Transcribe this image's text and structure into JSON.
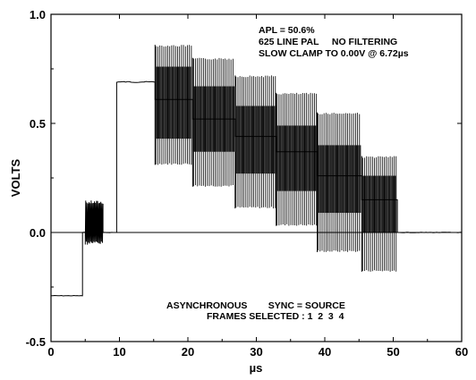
{
  "chart_data": {
    "type": "line",
    "title": "",
    "xlabel": "µs",
    "ylabel": "VOLTS",
    "xlim": [
      0,
      60
    ],
    "ylim": [
      -0.5,
      1.0
    ],
    "x_ticks": [
      "0",
      "10",
      "20",
      "30",
      "40",
      "50",
      "60"
    ],
    "y_ticks": [
      "1.0",
      "0.5",
      "0.0",
      "-0.5"
    ],
    "zero_line": 0.0,
    "grid": false,
    "annotations": {
      "top": [
        "APL = 50.6%",
        "625 LINE PAL     NO FILTERING",
        "SLOW CLAMP TO 0.00V @ 6.72µs"
      ],
      "bottom": [
        "ASYNCHRONOUS        SYNC = SOURCE",
        "FRAMES SELECTED : 1  2  3  4"
      ]
    },
    "series": [
      {
        "levels": [
          {
            "x_start": 0.0,
            "x_end": 4.6,
            "y": -0.29
          },
          {
            "x_start": 4.6,
            "x_end": 5.0,
            "y": 0.0
          },
          {
            "x_start": 5.0,
            "x_end": 7.6,
            "burst_low": -0.04,
            "burst_high": 0.13
          },
          {
            "x_start": 7.6,
            "x_end": 9.6,
            "y": 0.0
          },
          {
            "x_start": 9.6,
            "x_end": 15.2,
            "y": 0.69
          },
          {
            "x_start": 15.2,
            "x_end": 20.7,
            "center": 0.61,
            "band_low": 0.43,
            "band_high": 0.76,
            "envelope_low": 0.31,
            "envelope_high": 0.86
          },
          {
            "x_start": 20.7,
            "x_end": 26.9,
            "center": 0.52,
            "band_low": 0.37,
            "band_high": 0.67,
            "envelope_low": 0.21,
            "envelope_high": 0.8
          },
          {
            "x_start": 26.9,
            "x_end": 32.9,
            "center": 0.44,
            "band_low": 0.27,
            "band_high": 0.58,
            "envelope_low": 0.11,
            "envelope_high": 0.72
          },
          {
            "x_start": 32.9,
            "x_end": 38.9,
            "center": 0.37,
            "band_low": 0.19,
            "band_high": 0.49,
            "envelope_low": 0.03,
            "envelope_high": 0.64
          },
          {
            "x_start": 38.9,
            "x_end": 45.4,
            "center": 0.26,
            "band_low": 0.09,
            "band_high": 0.4,
            "envelope_low": -0.09,
            "envelope_high": 0.55
          },
          {
            "x_start": 45.4,
            "x_end": 50.6,
            "center": 0.15,
            "band_low": 0.0,
            "band_high": 0.26,
            "envelope_low": -0.18,
            "envelope_high": 0.35
          },
          {
            "x_start": 50.6,
            "x_end": 60.0,
            "y": 0.0
          }
        ]
      }
    ]
  }
}
